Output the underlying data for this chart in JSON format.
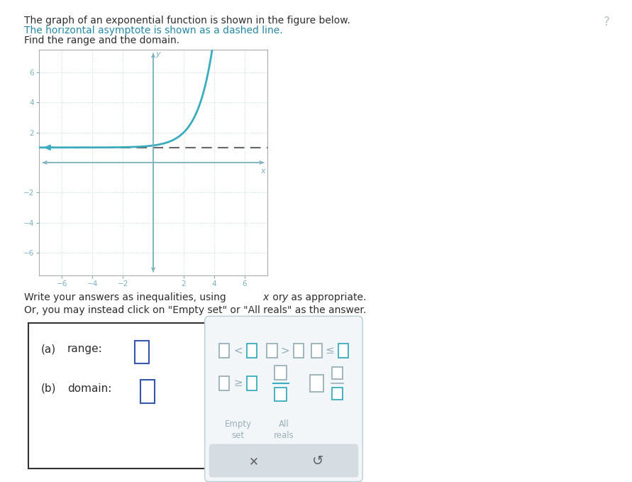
{
  "title_lines": [
    "The graph of an exponential function is shown in the figure below.",
    "The horizontal asymptote is shown as a dashed line.",
    "Find the range and the domain."
  ],
  "title_colors": [
    "#2d2d2d",
    "#2688a8",
    "#2d2d2d"
  ],
  "graph_color": "#3aacbe",
  "asymptote_color": "#666666",
  "asymptote_y": 1,
  "axis_color": "#7ab0c0",
  "grid_color": "#c0d8e0",
  "tick_color": "#7ab0c0",
  "xlim": [
    -7.5,
    7.5
  ],
  "ylim": [
    -7.5,
    7.5
  ],
  "xticks": [
    -6,
    -4,
    -2,
    2,
    4,
    6
  ],
  "yticks": [
    -6,
    -4,
    -2,
    2,
    4,
    6
  ],
  "background": "#ffffff",
  "box_color": "#3355aa",
  "panel2_bg": "#f2f6f8",
  "panel2_border": "#b8cdd5",
  "operator_teal": "#3aacbe",
  "operator_gray": "#9ab0ba",
  "bottom_bar_bg": "#d5dde2",
  "chegg_q_color": "#b0bec5",
  "graph_border": "#aaaaaa",
  "instruction_color": "#2d2d2d"
}
